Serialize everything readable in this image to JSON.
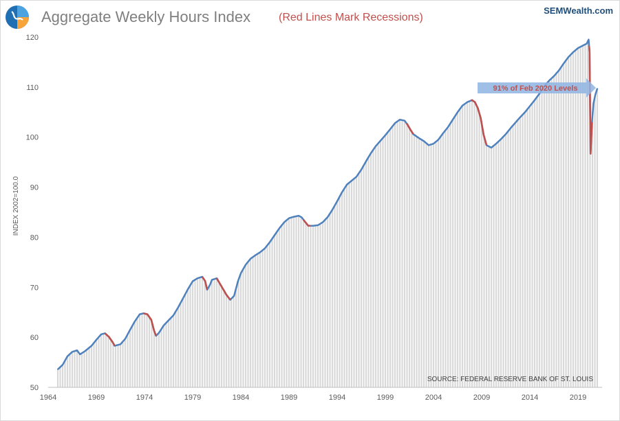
{
  "header": {
    "title": "Aggregate Weekly Hours Index",
    "subtitle": "(Red Lines Mark Recessions)",
    "brand": "SEMWealth.com",
    "logo_icon": "semwealth-logo-icon"
  },
  "chart_data": {
    "type": "line",
    "title": "Aggregate Weekly Hours Index",
    "subtitle": "(Red Lines Mark Recessions)",
    "xlabel": "",
    "ylabel": "INDEX 2002=100.0",
    "xlim": [
      1964,
      2021.5
    ],
    "ylim": [
      50,
      120
    ],
    "x_ticks": [
      "1964",
      "1969",
      "1974",
      "1979",
      "1984",
      "1989",
      "1994",
      "1999",
      "2004",
      "2009",
      "2014",
      "2019"
    ],
    "y_ticks": [
      "50",
      "60",
      "70",
      "80",
      "90",
      "100",
      "110",
      "120"
    ],
    "annotation": "91% of Feb 2020 Levels",
    "source": "SOURCE:  FEDERAL RESERVE BANK OF ST. LOUIS",
    "colors": {
      "line": "#4f81bd",
      "recession": "#c0504d",
      "fill": "#d9d9d9",
      "arrow": "#8eb4e3"
    },
    "series": [
      {
        "name": "Aggregate Weekly Hours Index",
        "points": [
          [
            1965.0,
            53.6
          ],
          [
            1965.5,
            54.5
          ],
          [
            1966.0,
            56.2
          ],
          [
            1966.5,
            57.1
          ],
          [
            1967.0,
            57.4
          ],
          [
            1967.3,
            56.6
          ],
          [
            1967.8,
            57.2
          ],
          [
            1968.5,
            58.3
          ],
          [
            1969.0,
            59.5
          ],
          [
            1969.5,
            60.6
          ],
          [
            1969.9,
            60.8
          ],
          [
            1970.3,
            60.1
          ],
          [
            1970.7,
            59.0
          ],
          [
            1970.9,
            58.3
          ],
          [
            1971.5,
            58.6
          ],
          [
            1972.0,
            59.7
          ],
          [
            1972.5,
            61.5
          ],
          [
            1973.0,
            63.2
          ],
          [
            1973.5,
            64.6
          ],
          [
            1973.9,
            64.8
          ],
          [
            1974.3,
            64.6
          ],
          [
            1974.7,
            63.5
          ],
          [
            1975.0,
            61.3
          ],
          [
            1975.2,
            60.3
          ],
          [
            1975.5,
            60.9
          ],
          [
            1976.0,
            62.4
          ],
          [
            1976.5,
            63.4
          ],
          [
            1977.0,
            64.4
          ],
          [
            1977.5,
            66.0
          ],
          [
            1978.0,
            67.8
          ],
          [
            1978.5,
            69.6
          ],
          [
            1979.0,
            71.2
          ],
          [
            1979.5,
            71.8
          ],
          [
            1980.0,
            72.1
          ],
          [
            1980.3,
            71.2
          ],
          [
            1980.5,
            69.5
          ],
          [
            1980.8,
            70.5
          ],
          [
            1981.0,
            71.5
          ],
          [
            1981.5,
            71.8
          ],
          [
            1981.8,
            70.8
          ],
          [
            1982.2,
            69.5
          ],
          [
            1982.5,
            68.5
          ],
          [
            1982.9,
            67.5
          ],
          [
            1983.3,
            68.3
          ],
          [
            1983.7,
            71.2
          ],
          [
            1984.0,
            72.8
          ],
          [
            1984.5,
            74.5
          ],
          [
            1985.0,
            75.7
          ],
          [
            1985.5,
            76.4
          ],
          [
            1986.0,
            77.0
          ],
          [
            1986.5,
            77.8
          ],
          [
            1987.0,
            79.0
          ],
          [
            1987.5,
            80.4
          ],
          [
            1988.0,
            81.8
          ],
          [
            1988.5,
            83.0
          ],
          [
            1989.0,
            83.8
          ],
          [
            1989.5,
            84.1
          ],
          [
            1990.0,
            84.3
          ],
          [
            1990.3,
            84.0
          ],
          [
            1990.7,
            83.0
          ],
          [
            1991.0,
            82.3
          ],
          [
            1991.5,
            82.3
          ],
          [
            1992.0,
            82.4
          ],
          [
            1992.5,
            83.0
          ],
          [
            1993.0,
            84.0
          ],
          [
            1993.5,
            85.5
          ],
          [
            1994.0,
            87.2
          ],
          [
            1994.5,
            89.0
          ],
          [
            1995.0,
            90.5
          ],
          [
            1995.5,
            91.3
          ],
          [
            1996.0,
            92.1
          ],
          [
            1996.5,
            93.5
          ],
          [
            1997.0,
            95.2
          ],
          [
            1997.5,
            96.8
          ],
          [
            1998.0,
            98.2
          ],
          [
            1998.5,
            99.3
          ],
          [
            1999.0,
            100.4
          ],
          [
            1999.5,
            101.6
          ],
          [
            2000.0,
            102.8
          ],
          [
            2000.5,
            103.5
          ],
          [
            2001.0,
            103.3
          ],
          [
            2001.3,
            102.5
          ],
          [
            2001.6,
            101.5
          ],
          [
            2001.9,
            100.6
          ],
          [
            2002.5,
            99.8
          ],
          [
            2003.0,
            99.2
          ],
          [
            2003.5,
            98.4
          ],
          [
            2004.0,
            98.7
          ],
          [
            2004.5,
            99.5
          ],
          [
            2005.0,
            100.8
          ],
          [
            2005.5,
            102.0
          ],
          [
            2006.0,
            103.5
          ],
          [
            2006.5,
            105.0
          ],
          [
            2007.0,
            106.3
          ],
          [
            2007.5,
            107.0
          ],
          [
            2008.0,
            107.4
          ],
          [
            2008.3,
            107.0
          ],
          [
            2008.6,
            105.8
          ],
          [
            2008.9,
            103.8
          ],
          [
            2009.2,
            100.5
          ],
          [
            2009.5,
            98.4
          ],
          [
            2010.0,
            97.9
          ],
          [
            2010.5,
            98.7
          ],
          [
            2011.0,
            99.6
          ],
          [
            2011.5,
            100.6
          ],
          [
            2012.0,
            101.8
          ],
          [
            2012.5,
            102.9
          ],
          [
            2013.0,
            104.0
          ],
          [
            2013.5,
            105.0
          ],
          [
            2014.0,
            106.2
          ],
          [
            2014.5,
            107.4
          ],
          [
            2015.0,
            108.7
          ],
          [
            2015.5,
            110.2
          ],
          [
            2016.0,
            111.3
          ],
          [
            2016.5,
            112.2
          ],
          [
            2017.0,
            113.3
          ],
          [
            2017.5,
            114.7
          ],
          [
            2018.0,
            116.0
          ],
          [
            2018.5,
            117.0
          ],
          [
            2019.0,
            117.8
          ],
          [
            2019.5,
            118.3
          ],
          [
            2019.9,
            118.7
          ],
          [
            2020.1,
            119.5
          ],
          [
            2020.2,
            117.0
          ],
          [
            2020.3,
            96.7
          ],
          [
            2020.45,
            103.0
          ],
          [
            2020.6,
            106.7
          ],
          [
            2020.8,
            108.5
          ],
          [
            2021.0,
            109.7
          ]
        ]
      }
    ],
    "recessions": [
      [
        1969.9,
        1970.9
      ],
      [
        1973.9,
        1975.2
      ],
      [
        1980.0,
        1980.5
      ],
      [
        1981.5,
        1982.9
      ],
      [
        1990.5,
        1991.2
      ],
      [
        2001.2,
        2001.9
      ],
      [
        2007.9,
        2009.5
      ],
      [
        2020.15,
        2020.45
      ]
    ]
  }
}
